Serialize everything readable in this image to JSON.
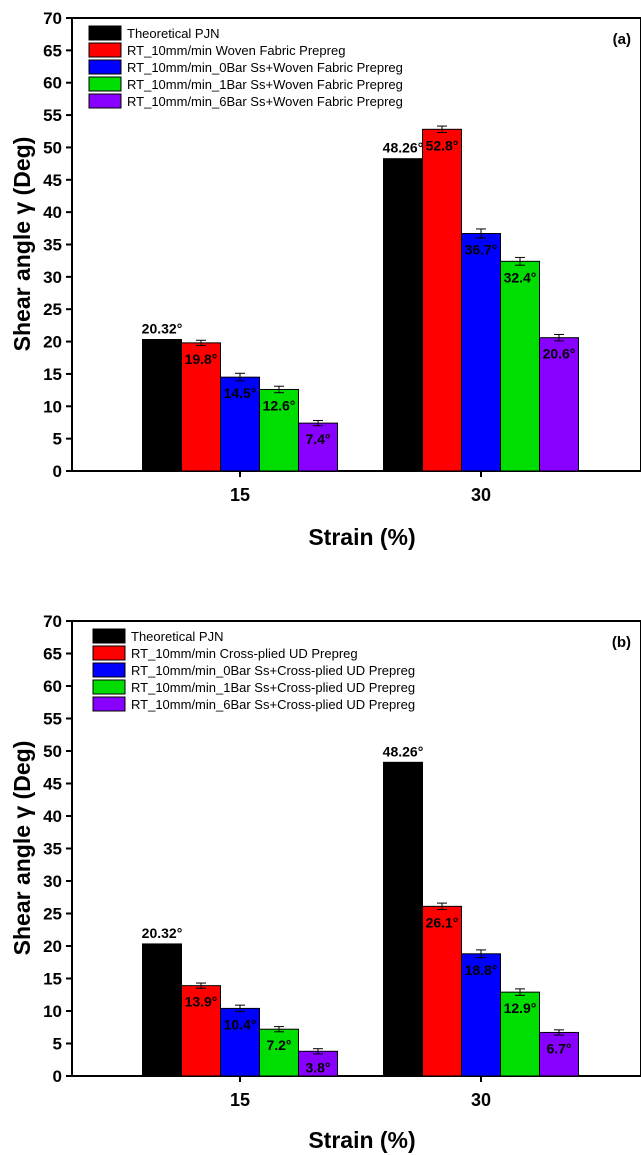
{
  "chart_data": [
    {
      "type": "bar",
      "panel_label": "(a)",
      "categories": [
        "15",
        "30"
      ],
      "xlabel": "Strain (%)",
      "ylabel": "Shear angle γ (Deg)",
      "ylim": [
        0,
        70
      ],
      "yticks": [
        "0",
        "5",
        "10",
        "15",
        "20",
        "25",
        "30",
        "35",
        "40",
        "45",
        "50",
        "55",
        "60",
        "65",
        "70"
      ],
      "grid": false,
      "legend_position": "top-left",
      "series": [
        {
          "name": "Theoretical PJN",
          "color": "#000000",
          "values": [
            20.32,
            48.26
          ],
          "errors": [
            0,
            0
          ],
          "labels": [
            "20.32°",
            "48.26°"
          ],
          "label_pos": "above"
        },
        {
          "name": "RT_10mm/min Woven Fabric Prepreg",
          "color": "#ff0000",
          "values": [
            19.8,
            52.8
          ],
          "errors": [
            0.4,
            0.5
          ],
          "labels": [
            "19.8°",
            "52.8°"
          ],
          "label_pos": "inside"
        },
        {
          "name": "RT_10mm/min_0Bar Ss+Woven Fabric Prepreg",
          "color": "#0000ff",
          "values": [
            14.5,
            36.7
          ],
          "errors": [
            0.6,
            0.7
          ],
          "labels": [
            "14.5°",
            "36.7°"
          ],
          "label_pos": "inside"
        },
        {
          "name": "RT_10mm/min_1Bar Ss+Woven Fabric Prepreg",
          "color": "#00dd00",
          "values": [
            12.6,
            32.4
          ],
          "errors": [
            0.5,
            0.6
          ],
          "labels": [
            "12.6°",
            "32.4°"
          ],
          "label_pos": "inside"
        },
        {
          "name": "RT_10mm/min_6Bar Ss+Woven Fabric Prepreg",
          "color": "#8800ff",
          "values": [
            7.4,
            20.6
          ],
          "errors": [
            0.4,
            0.5
          ],
          "labels": [
            "7.4°",
            "20.6°"
          ],
          "label_pos": "inside"
        }
      ]
    },
    {
      "type": "bar",
      "panel_label": "(b)",
      "categories": [
        "15",
        "30"
      ],
      "xlabel": "Strain (%)",
      "ylabel": "Shear angle γ (Deg)",
      "ylim": [
        0,
        70
      ],
      "yticks": [
        "0",
        "5",
        "10",
        "15",
        "20",
        "25",
        "30",
        "35",
        "40",
        "45",
        "50",
        "55",
        "60",
        "65",
        "70"
      ],
      "grid": false,
      "legend_position": "top-left",
      "series": [
        {
          "name": "Theoretical PJN",
          "color": "#000000",
          "values": [
            20.32,
            48.26
          ],
          "errors": [
            0,
            0
          ],
          "labels": [
            "20.32°",
            "48.26°"
          ],
          "label_pos": "above"
        },
        {
          "name": "RT_10mm/min Cross-plied UD Prepreg",
          "color": "#ff0000",
          "values": [
            13.9,
            26.1
          ],
          "errors": [
            0.4,
            0.5
          ],
          "labels": [
            "13.9°",
            "26.1°"
          ],
          "label_pos": "inside"
        },
        {
          "name": "RT_10mm/min_0Bar Ss+Cross-plied UD Prepreg",
          "color": "#0000ff",
          "values": [
            10.4,
            18.8
          ],
          "errors": [
            0.5,
            0.6
          ],
          "labels": [
            "10.4°",
            "18.8°"
          ],
          "label_pos": "inside"
        },
        {
          "name": "RT_10mm/min_1Bar Ss+Cross-plied UD Prepreg",
          "color": "#00dd00",
          "values": [
            7.2,
            12.9
          ],
          "errors": [
            0.4,
            0.5
          ],
          "labels": [
            "7.2°",
            "12.9°"
          ],
          "label_pos": "inside"
        },
        {
          "name": "RT_10mm/min_6Bar Ss+Cross-plied UD Prepreg",
          "color": "#8800ff",
          "values": [
            3.8,
            6.7
          ],
          "errors": [
            0.4,
            0.4
          ],
          "labels": [
            "3.8°",
            "6.7°"
          ],
          "label_pos": "inside"
        }
      ]
    }
  ]
}
